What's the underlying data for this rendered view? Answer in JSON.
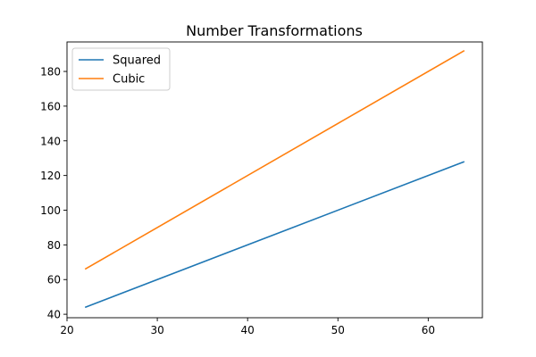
{
  "chart_data": {
    "type": "line",
    "title": "Number Transformations",
    "xlabel": "",
    "ylabel": "",
    "xlim": [
      20,
      66
    ],
    "ylim": [
      38,
      197
    ],
    "xticks": [
      20,
      30,
      40,
      50,
      60
    ],
    "yticks": [
      40,
      60,
      80,
      100,
      120,
      140,
      160,
      180
    ],
    "grid": false,
    "legend_position": "top-left",
    "series": [
      {
        "name": "Squared",
        "color": "#1f77b4",
        "x": [
          22,
          64
        ],
        "y": [
          44,
          128
        ]
      },
      {
        "name": "Cubic",
        "color": "#ff7f0e",
        "x": [
          22,
          64
        ],
        "y": [
          66,
          192
        ]
      }
    ]
  }
}
